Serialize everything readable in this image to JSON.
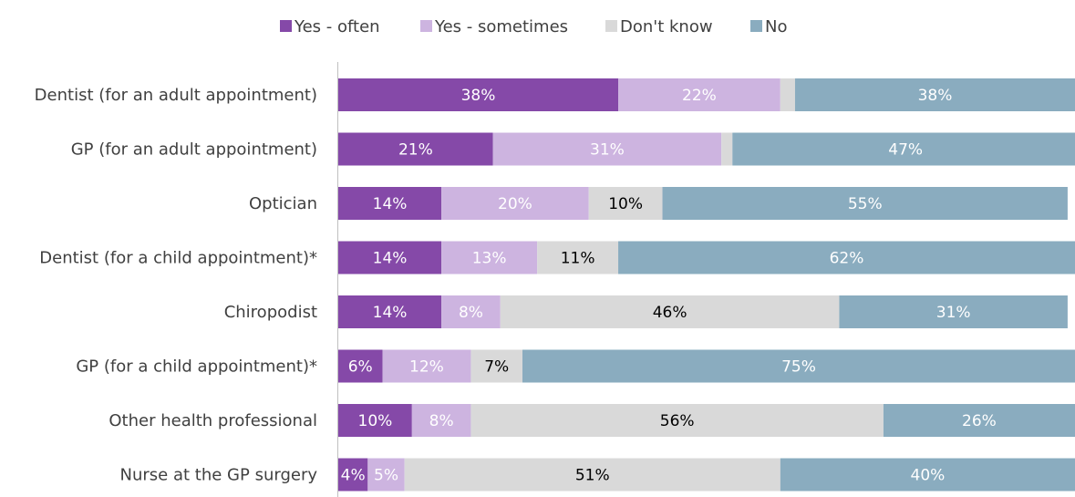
{
  "chart_data": {
    "type": "bar",
    "orientation": "horizontal",
    "stacked": true,
    "title": "",
    "xlabel": "",
    "ylabel": "",
    "xlim": [
      0,
      100
    ],
    "grid": false,
    "legend": "top-center",
    "categories": [
      "Dentist (for an adult appointment)",
      "GP (for an adult appointment)",
      "Optician",
      "Dentist (for a child appointment)*",
      "Chiropodist",
      "GP (for a child appointment)*",
      "Other health professional",
      "Nurse at the GP surgery"
    ],
    "series": [
      {
        "name": "Yes - often",
        "color": "#8549A8",
        "label_color": "#FFFFFF",
        "values": [
          38,
          21,
          14,
          14,
          14,
          6,
          10,
          4
        ],
        "labels": [
          "38%",
          "21%",
          "14%",
          "14%",
          "14%",
          "6%",
          "10%",
          "4%"
        ]
      },
      {
        "name": "Yes - sometimes",
        "color": "#CDB4E0",
        "label_color": "#FFFFFF",
        "values": [
          22,
          31,
          20,
          13,
          8,
          12,
          8,
          5
        ],
        "labels": [
          "22%",
          "31%",
          "20%",
          "13%",
          "8%",
          "12%",
          "8%",
          "5%"
        ]
      },
      {
        "name": "Don't know",
        "color": "#D9D9D9",
        "label_color": "#000000",
        "values": [
          2,
          1.5,
          10,
          11,
          46,
          7,
          56,
          51
        ],
        "labels": [
          "",
          "",
          "10%",
          "11%",
          "46%",
          "7%",
          "56%",
          "51%"
        ]
      },
      {
        "name": "No",
        "color": "#8AACBF",
        "label_color": "#FFFFFF",
        "values": [
          38,
          47,
          55,
          62,
          31,
          75,
          26,
          40
        ],
        "labels": [
          "38%",
          "47%",
          "55%",
          "62%",
          "31%",
          "75%",
          "26%",
          "40%"
        ]
      }
    ]
  }
}
